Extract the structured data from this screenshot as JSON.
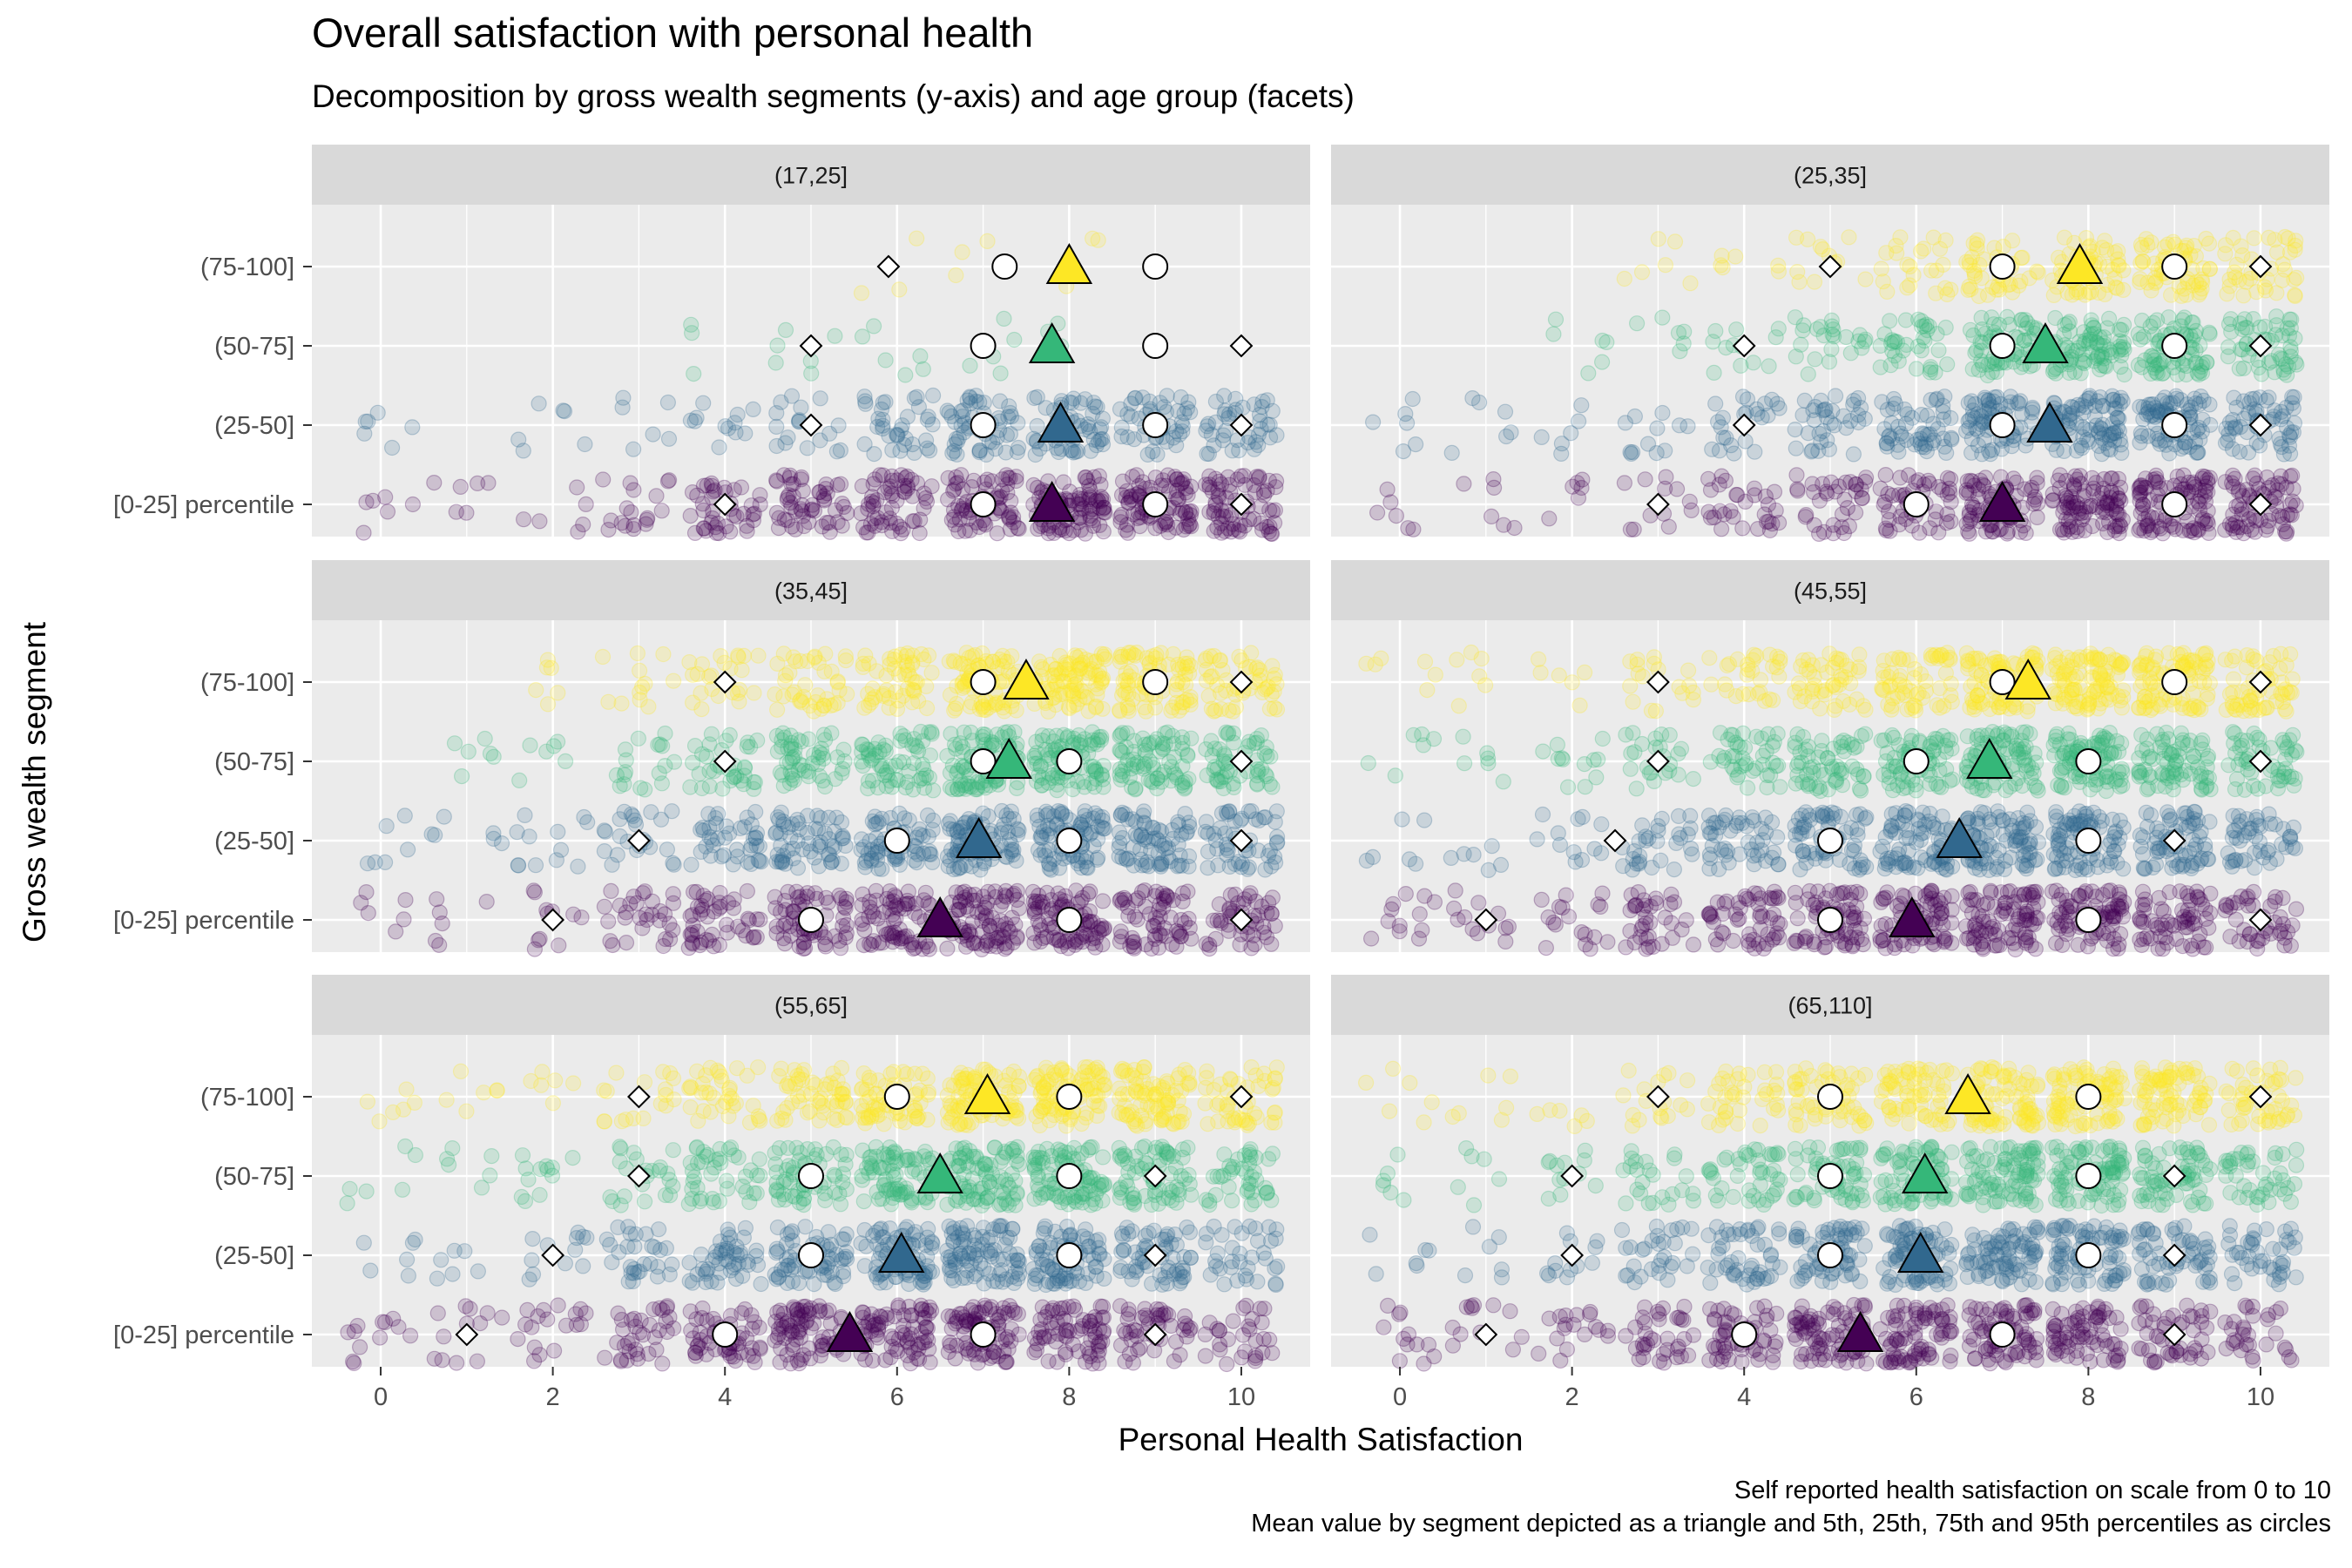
{
  "title": "Overall satisfaction with personal health",
  "subtitle": "Decomposition by gross wealth segments (y-axis) and age group (facets)",
  "caption": [
    "Self reported health satisfaction on scale from 0 to 10",
    "Mean value by segment depicted as a triangle and 5th, 25th, 75th and 95th percentiles as circles"
  ],
  "chart_data": {
    "type": "scatter",
    "xlabel": "Personal Health Satisfaction",
    "ylabel": "Gross wealth segment",
    "xlim": [
      -0.8,
      10.8
    ],
    "xticks": [
      "0",
      "2",
      "4",
      "6",
      "8",
      "10"
    ],
    "categories": [
      "[0-25] percentile",
      "(25-50]",
      "(50-75]",
      "(75-100]"
    ],
    "grid": true,
    "colors": {
      "[0-25] percentile": "#440154",
      "(25-50]": "#31688e",
      "(50-75]": "#35b779",
      "(75-100]": "#fde725"
    },
    "legend": "none",
    "marker_legend": {
      "mean": "triangle",
      "percentiles_5_25_75_95": "circle",
      "other": "diamond"
    },
    "facets": [
      {
        "label": "(17,25]",
        "density": [
          [
            1,
            1,
            1,
            3,
            7,
            9,
            10,
            12,
            15,
            15,
            12
          ],
          [
            1,
            0,
            1,
            1,
            2,
            3,
            6,
            9,
            10,
            8,
            7
          ],
          [
            0,
            0,
            0,
            0,
            0.5,
            1,
            1,
            1,
            0.5,
            0,
            0
          ],
          [
            0,
            0,
            0,
            0,
            0,
            0,
            0.5,
            0.5,
            0.5,
            0,
            0
          ]
        ],
        "stats": [
          {
            "mean": 7.8,
            "circles": [
              7,
              9
            ],
            "diamonds": [
              4,
              10
            ]
          },
          {
            "mean": 7.9,
            "circles": [
              7,
              9
            ],
            "diamonds": [
              5,
              10
            ]
          },
          {
            "mean": 7.8,
            "circles": [
              7,
              9
            ],
            "diamonds": [
              5,
              10
            ]
          },
          {
            "mean": 8.0,
            "circles": [
              7.25,
              9
            ],
            "diamonds": [
              5.9,
              9
            ]
          }
        ]
      },
      {
        "label": "(25,35]",
        "density": [
          [
            1,
            1,
            1,
            2,
            5,
            6,
            9,
            13,
            16,
            16,
            12
          ],
          [
            1,
            1,
            1,
            2,
            4,
            6,
            9,
            12,
            15,
            14,
            10
          ],
          [
            0,
            0,
            1,
            1,
            2,
            4,
            6,
            11,
            14,
            13,
            9
          ],
          [
            0,
            0,
            0,
            1,
            1,
            2,
            4,
            7,
            10,
            10,
            7
          ]
        ],
        "stats": [
          {
            "mean": 7.0,
            "circles": [
              6,
              9
            ],
            "diamonds": [
              3,
              10
            ]
          },
          {
            "mean": 7.55,
            "circles": [
              7,
              9
            ],
            "diamonds": [
              4,
              10
            ]
          },
          {
            "mean": 7.5,
            "circles": [
              7,
              9
            ],
            "diamonds": [
              4,
              10
            ]
          },
          {
            "mean": 7.9,
            "circles": [
              7,
              9
            ],
            "diamonds": [
              5,
              10
            ]
          }
        ]
      },
      {
        "label": "(35,45]",
        "density": [
          [
            1,
            1,
            2,
            5,
            8,
            11,
            12,
            15,
            15,
            11,
            8
          ],
          [
            1,
            1,
            2,
            4,
            7,
            10,
            12,
            15,
            15,
            12,
            9
          ],
          [
            0,
            1,
            1,
            3,
            6,
            9,
            11,
            15,
            16,
            13,
            9
          ],
          [
            0,
            0,
            1,
            2,
            4,
            7,
            9,
            14,
            16,
            14,
            9
          ]
        ],
        "stats": [
          {
            "mean": 6.5,
            "circles": [
              5,
              8
            ],
            "diamonds": [
              2,
              10
            ]
          },
          {
            "mean": 6.95,
            "circles": [
              6,
              8
            ],
            "diamonds": [
              3,
              10
            ]
          },
          {
            "mean": 7.3,
            "circles": [
              7,
              8
            ],
            "diamonds": [
              4,
              10
            ]
          },
          {
            "mean": 7.5,
            "circles": [
              7,
              9
            ],
            "diamonds": [
              4,
              10
            ]
          }
        ]
      },
      {
        "label": "(45,55]",
        "density": [
          [
            2,
            2,
            3,
            6,
            9,
            12,
            13,
            15,
            14,
            11,
            7
          ],
          [
            1,
            1,
            2,
            5,
            8,
            11,
            13,
            15,
            15,
            12,
            8
          ],
          [
            1,
            1,
            2,
            4,
            7,
            10,
            12,
            15,
            16,
            13,
            9
          ],
          [
            1,
            1,
            1,
            3,
            5,
            8,
            10,
            15,
            17,
            15,
            10
          ]
        ],
        "stats": [
          {
            "mean": 5.95,
            "circles": [
              5,
              8
            ],
            "diamonds": [
              1,
              10
            ]
          },
          {
            "mean": 6.5,
            "circles": [
              5,
              8
            ],
            "diamonds": [
              2.5,
              9
            ]
          },
          {
            "mean": 6.85,
            "circles": [
              6,
              8
            ],
            "diamonds": [
              3,
              10
            ]
          },
          {
            "mean": 7.3,
            "circles": [
              7,
              9
            ],
            "diamonds": [
              3,
              10
            ]
          }
        ]
      },
      {
        "label": "(55,65]",
        "density": [
          [
            2,
            2,
            3,
            6,
            9,
            13,
            13,
            14,
            12,
            8,
            5
          ],
          [
            1,
            1,
            2,
            5,
            8,
            11,
            13,
            15,
            14,
            10,
            6
          ],
          [
            1,
            1,
            2,
            4,
            7,
            10,
            13,
            15,
            15,
            12,
            7
          ],
          [
            1,
            1,
            1,
            3,
            6,
            9,
            11,
            16,
            16,
            14,
            8
          ]
        ],
        "stats": [
          {
            "mean": 5.45,
            "circles": [
              4,
              7
            ],
            "diamonds": [
              1,
              9
            ]
          },
          {
            "mean": 6.05,
            "circles": [
              5,
              8
            ],
            "diamonds": [
              2,
              9
            ]
          },
          {
            "mean": 6.5,
            "circles": [
              5,
              8
            ],
            "diamonds": [
              3,
              9
            ]
          },
          {
            "mean": 7.05,
            "circles": [
              6,
              8
            ],
            "diamonds": [
              3,
              10
            ]
          }
        ]
      },
      {
        "label": "(65,110]",
        "density": [
          [
            2,
            2,
            3,
            6,
            9,
            13,
            13,
            13,
            12,
            8,
            5
          ],
          [
            1,
            1,
            2,
            5,
            8,
            11,
            13,
            14,
            14,
            10,
            7
          ],
          [
            1,
            1,
            2,
            4,
            7,
            10,
            13,
            15,
            15,
            11,
            7
          ],
          [
            1,
            1,
            1,
            3,
            6,
            9,
            11,
            15,
            15,
            13,
            8
          ]
        ],
        "stats": [
          {
            "mean": 5.35,
            "circles": [
              4,
              7
            ],
            "diamonds": [
              1,
              9
            ]
          },
          {
            "mean": 6.05,
            "circles": [
              5,
              8
            ],
            "diamonds": [
              2,
              9
            ]
          },
          {
            "mean": 6.1,
            "circles": [
              5,
              8
            ],
            "diamonds": [
              2,
              9
            ]
          },
          {
            "mean": 6.6,
            "circles": [
              5,
              8
            ],
            "diamonds": [
              3,
              10
            ]
          }
        ]
      }
    ]
  }
}
